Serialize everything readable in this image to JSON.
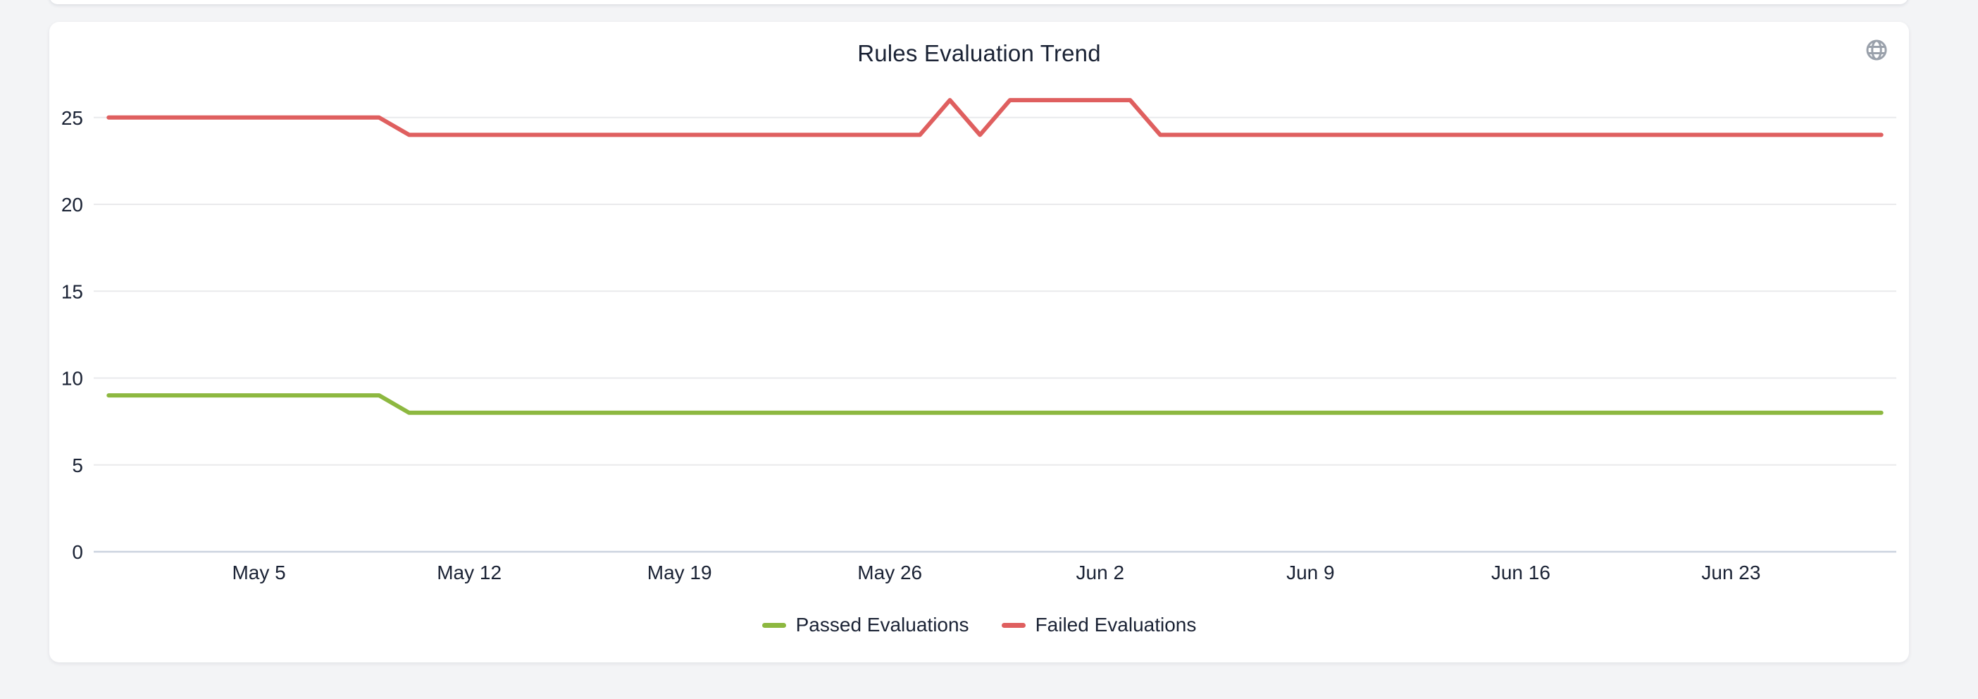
{
  "card": {
    "title_note": "chart card containing the trend line chart"
  },
  "icons": {
    "globe_icon_color": "#9aa1ab"
  },
  "colors": {
    "page_background": "#f3f4f6",
    "card_background": "#ffffff",
    "text": "#1a2234",
    "gridline": "#e9eaec",
    "axis_baseline": "#ccd3df"
  },
  "chart_data": {
    "type": "line",
    "title": "Rules Evaluation Trend",
    "grid": "horizontal-only",
    "legend_position": "bottom",
    "ylim": [
      0,
      26.6
    ],
    "y_ticks": [
      0,
      5,
      10,
      15,
      20,
      25
    ],
    "x_ticks": [
      {
        "i": 5,
        "label": "May 5"
      },
      {
        "i": 12,
        "label": "May 12"
      },
      {
        "i": 19,
        "label": "May 19"
      },
      {
        "i": 26,
        "label": "May 26"
      },
      {
        "i": 33,
        "label": "Jun 2"
      },
      {
        "i": 40,
        "label": "Jun 9"
      },
      {
        "i": 47,
        "label": "Jun 16"
      },
      {
        "i": 54,
        "label": "Jun 23"
      }
    ],
    "categories": [
      "Apr 30",
      "May 1",
      "May 2",
      "May 3",
      "May 4",
      "May 5",
      "May 6",
      "May 7",
      "May 8",
      "May 9",
      "May 10",
      "May 11",
      "May 12",
      "May 13",
      "May 14",
      "May 15",
      "May 16",
      "May 17",
      "May 18",
      "May 19",
      "May 20",
      "May 21",
      "May 22",
      "May 23",
      "May 24",
      "May 25",
      "May 26",
      "May 27",
      "May 28",
      "May 29",
      "May 30",
      "May 31",
      "Jun 1",
      "Jun 2",
      "Jun 3",
      "Jun 4",
      "Jun 5",
      "Jun 6",
      "Jun 7",
      "Jun 8",
      "Jun 9",
      "Jun 10",
      "Jun 11",
      "Jun 12",
      "Jun 13",
      "Jun 14",
      "Jun 15",
      "Jun 16",
      "Jun 17",
      "Jun 18",
      "Jun 19",
      "Jun 20",
      "Jun 21",
      "Jun 22",
      "Jun 23",
      "Jun 24",
      "Jun 25",
      "Jun 26",
      "Jun 27",
      "Jun 28"
    ],
    "series": [
      {
        "name": "Passed Evaluations",
        "color": "#8db840",
        "values": [
          9,
          9,
          9,
          9,
          9,
          9,
          9,
          9,
          9,
          9,
          8,
          8,
          8,
          8,
          8,
          8,
          8,
          8,
          8,
          8,
          8,
          8,
          8,
          8,
          8,
          8,
          8,
          8,
          8,
          8,
          8,
          8,
          8,
          8,
          8,
          8,
          8,
          8,
          8,
          8,
          8,
          8,
          8,
          8,
          8,
          8,
          8,
          8,
          8,
          8,
          8,
          8,
          8,
          8,
          8,
          8,
          8,
          8,
          8,
          8
        ]
      },
      {
        "name": "Failed Evaluations",
        "color": "#df5f5f",
        "values": [
          25,
          25,
          25,
          25,
          25,
          25,
          25,
          25,
          25,
          25,
          24,
          24,
          24,
          24,
          24,
          24,
          24,
          24,
          24,
          24,
          24,
          24,
          24,
          24,
          24,
          24,
          24,
          24,
          26,
          24,
          26,
          26,
          26,
          26,
          26,
          24,
          24,
          24,
          24,
          24,
          24,
          24,
          24,
          24,
          24,
          24,
          24,
          24,
          24,
          24,
          24,
          24,
          24,
          24,
          24,
          24,
          24,
          24,
          24,
          24
        ]
      }
    ]
  }
}
